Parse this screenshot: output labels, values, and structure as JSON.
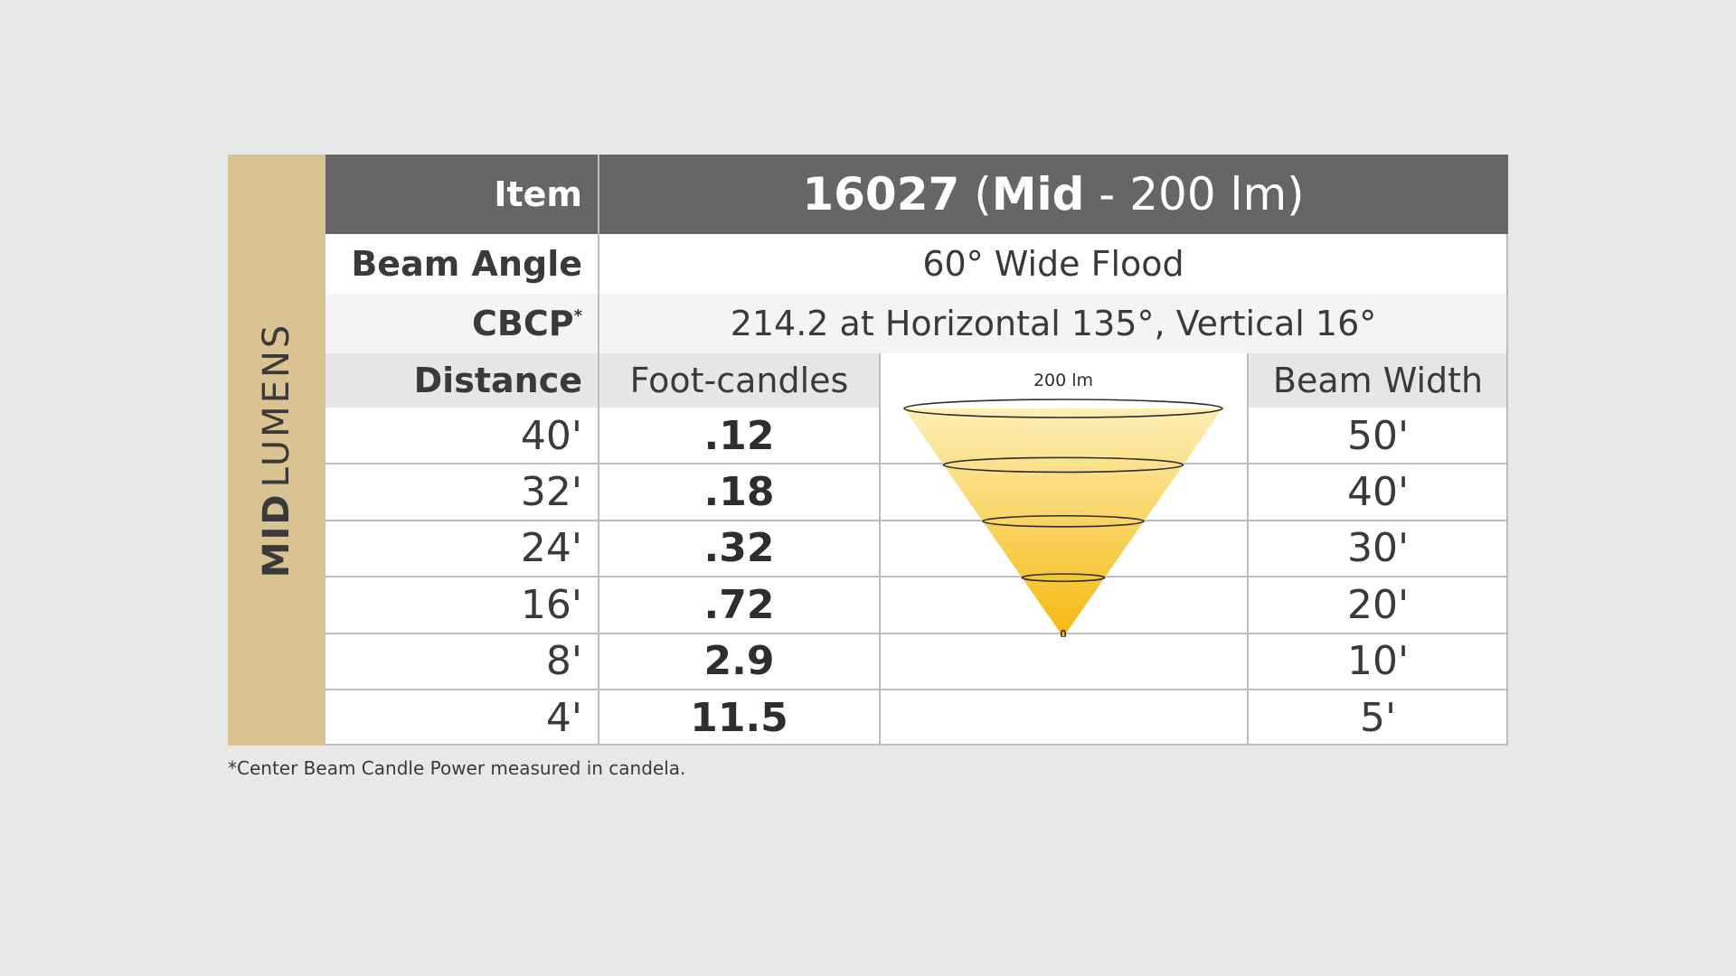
{
  "sidebar": {
    "bold": "MID",
    "light": "LUMENS"
  },
  "header": {
    "item_label": "Item",
    "title_num": "16027",
    "title_open": " (",
    "title_mid": "Mid",
    "title_rest": " - 200 lm)"
  },
  "beam_angle": {
    "label": "Beam Angle",
    "value": "60° Wide Flood"
  },
  "cbcp": {
    "label": "CBCP",
    "sup": "*",
    "value": "214.2 at Horizontal 135°, Vertical 16°"
  },
  "columns": {
    "distance": "Distance",
    "foot_candles": "Foot-candles",
    "beam_width": "Beam Width",
    "cone_label": "200 lm"
  },
  "chart_data": {
    "type": "table",
    "columns": [
      "Distance",
      "Foot-candles",
      "Beam Width"
    ],
    "rows": [
      {
        "distance": "40'",
        "foot_candles": ".12",
        "beam_width": "50'"
      },
      {
        "distance": "32'",
        "foot_candles": ".18",
        "beam_width": "40'"
      },
      {
        "distance": "24'",
        "foot_candles": ".32",
        "beam_width": "30'"
      },
      {
        "distance": "16'",
        "foot_candles": ".72",
        "beam_width": "20'"
      },
      {
        "distance": "8'",
        "foot_candles": "2.9",
        "beam_width": "10'"
      },
      {
        "distance": "4'",
        "foot_candles": "11.5",
        "beam_width": "5'"
      }
    ],
    "colors": {
      "cone_top": "#fdeeb6",
      "cone_bottom": "#f5b90f",
      "header": "#666666",
      "sidebar": "#d9c393"
    }
  },
  "footnote": "*Center Beam Candle Power measured in candela."
}
